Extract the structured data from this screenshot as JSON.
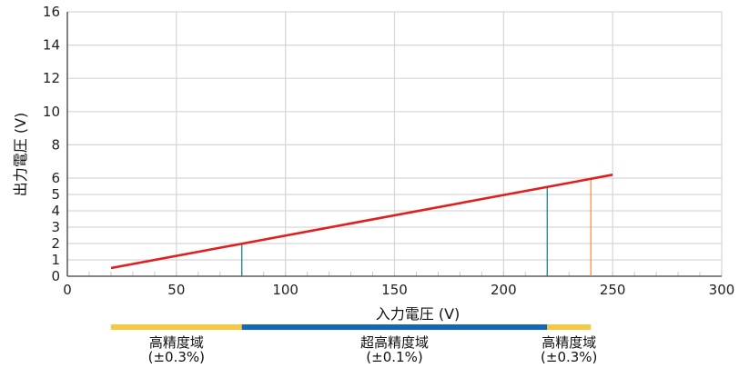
{
  "chart_data": {
    "type": "line",
    "xlabel": "入力電圧 (V)",
    "ylabel": "出力電圧 (V)",
    "xlim": [
      0,
      300
    ],
    "ylim": [
      0,
      16
    ],
    "x_ticks": [
      0,
      50,
      100,
      150,
      200,
      250,
      300
    ],
    "y_ticks": [
      0,
      1,
      2,
      3,
      4,
      5,
      6,
      8,
      10,
      12,
      14,
      16
    ],
    "grid": true,
    "series": [
      {
        "color": "#e02020",
        "x": [
          20,
          250
        ],
        "y": [
          0.5,
          6.2
        ]
      }
    ],
    "markers": [
      {
        "x": 80,
        "y": 2.0,
        "color": "#0a7a7a"
      },
      {
        "x": 220,
        "y": 5.5,
        "color": "#0a7a7a"
      },
      {
        "x": 240,
        "y": 6.0,
        "color": "#f08a3c"
      }
    ],
    "bands": [
      {
        "from": 20,
        "to": 80,
        "color": "#f5c842",
        "label": "高精度域",
        "sub": "(±0.3%)"
      },
      {
        "from": 80,
        "to": 220,
        "color": "#1466b8",
        "label": "超高精度域",
        "sub": "(±0.1%)"
      },
      {
        "from": 220,
        "to": 240,
        "color": "#f5c842",
        "label": "高精度域",
        "sub": "(±0.3%)"
      }
    ]
  }
}
